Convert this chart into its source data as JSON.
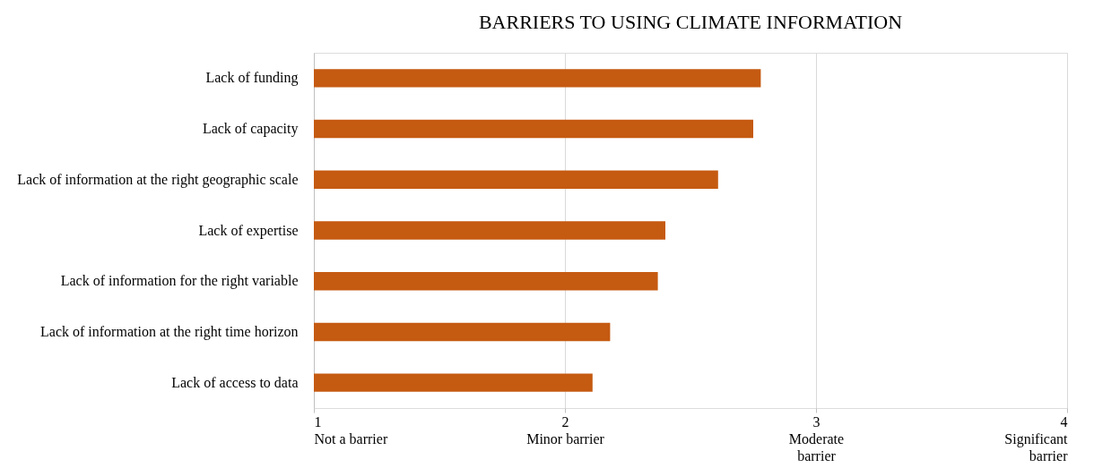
{
  "chart_data": {
    "type": "bar",
    "orientation": "horizontal",
    "title": "BARRIERS TO USING CLIMATE INFORMATION",
    "categories": [
      "Lack of funding",
      "Lack of capacity",
      "Lack of information at the right geographic scale",
      "Lack of expertise",
      "Lack of information for the right variable",
      "Lack of information at the right time horizon",
      "Lack of access to data"
    ],
    "values": [
      2.78,
      2.75,
      2.61,
      2.4,
      2.37,
      2.18,
      2.11
    ],
    "color": "#c55a11",
    "xlim": [
      1,
      4
    ],
    "xticks": [
      {
        "value": 1,
        "label": "1\nNot a barrier"
      },
      {
        "value": 2,
        "label": "2\nMinor barrier"
      },
      {
        "value": 3,
        "label": "3\nModerate\nbarrier"
      },
      {
        "value": 4,
        "label": "4\nSignificant\nbarrier"
      }
    ],
    "grid": "x"
  }
}
